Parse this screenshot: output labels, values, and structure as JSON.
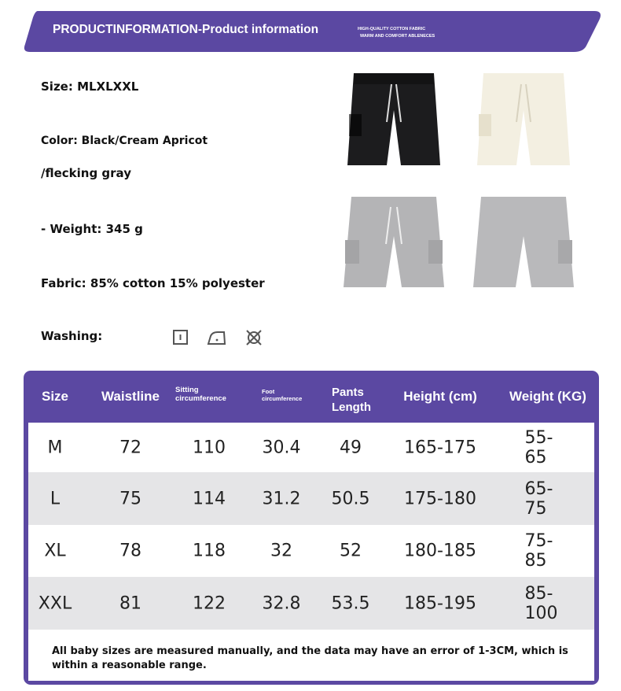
{
  "banner": {
    "title": "PRODUCTINFORMATION-Product information",
    "subtitle_line1": "HIGH-QUALITY COTTON FABRIC",
    "subtitle_line2": "WARM AND COMFORT ABLENECES",
    "color": "#5b48a2"
  },
  "info": {
    "size": "Size: MLXLXXL",
    "color_line1": "Color: Black/Cream Apricot",
    "color_line2": "/flecking gray",
    "weight": "- Weight: 345 g",
    "fabric": "Fabric: 85% cotton 15% polyester",
    "washing": "Washing:",
    "care_icons": [
      "tumble-dry-icon",
      "iron-low-icon",
      "do-not-dryclean-icon"
    ]
  },
  "products": [
    {
      "color_name": "black",
      "hex": "#1c1c1e"
    },
    {
      "color_name": "cream-apricot",
      "hex": "#f3efe1"
    },
    {
      "color_name": "flecking-gray",
      "hex": "#b4b4b6"
    },
    {
      "color_name": "flecking-gray",
      "hex": "#b9b9bb"
    }
  ],
  "size_table": {
    "headers": [
      "Size",
      "Waistline",
      "Sitting circumference",
      "Foot circumference",
      "Pants Length",
      "Height (cm)",
      "Weight (KG)"
    ],
    "rows": [
      [
        "M",
        "72",
        "110",
        "30.4",
        "49",
        "165-175",
        "55-65"
      ],
      [
        "L",
        "75",
        "114",
        "31.2",
        "50.5",
        "175-180",
        "65-75"
      ],
      [
        "XL",
        "78",
        "118",
        "32",
        "52",
        "180-185",
        "75-85"
      ],
      [
        "XXL",
        "81",
        "122",
        "32.8",
        "53.5",
        "185-195",
        "85-100"
      ]
    ],
    "note": "All baby sizes are measured manually, and the data may have an error of 1-3CM, which is within a reasonable range."
  }
}
